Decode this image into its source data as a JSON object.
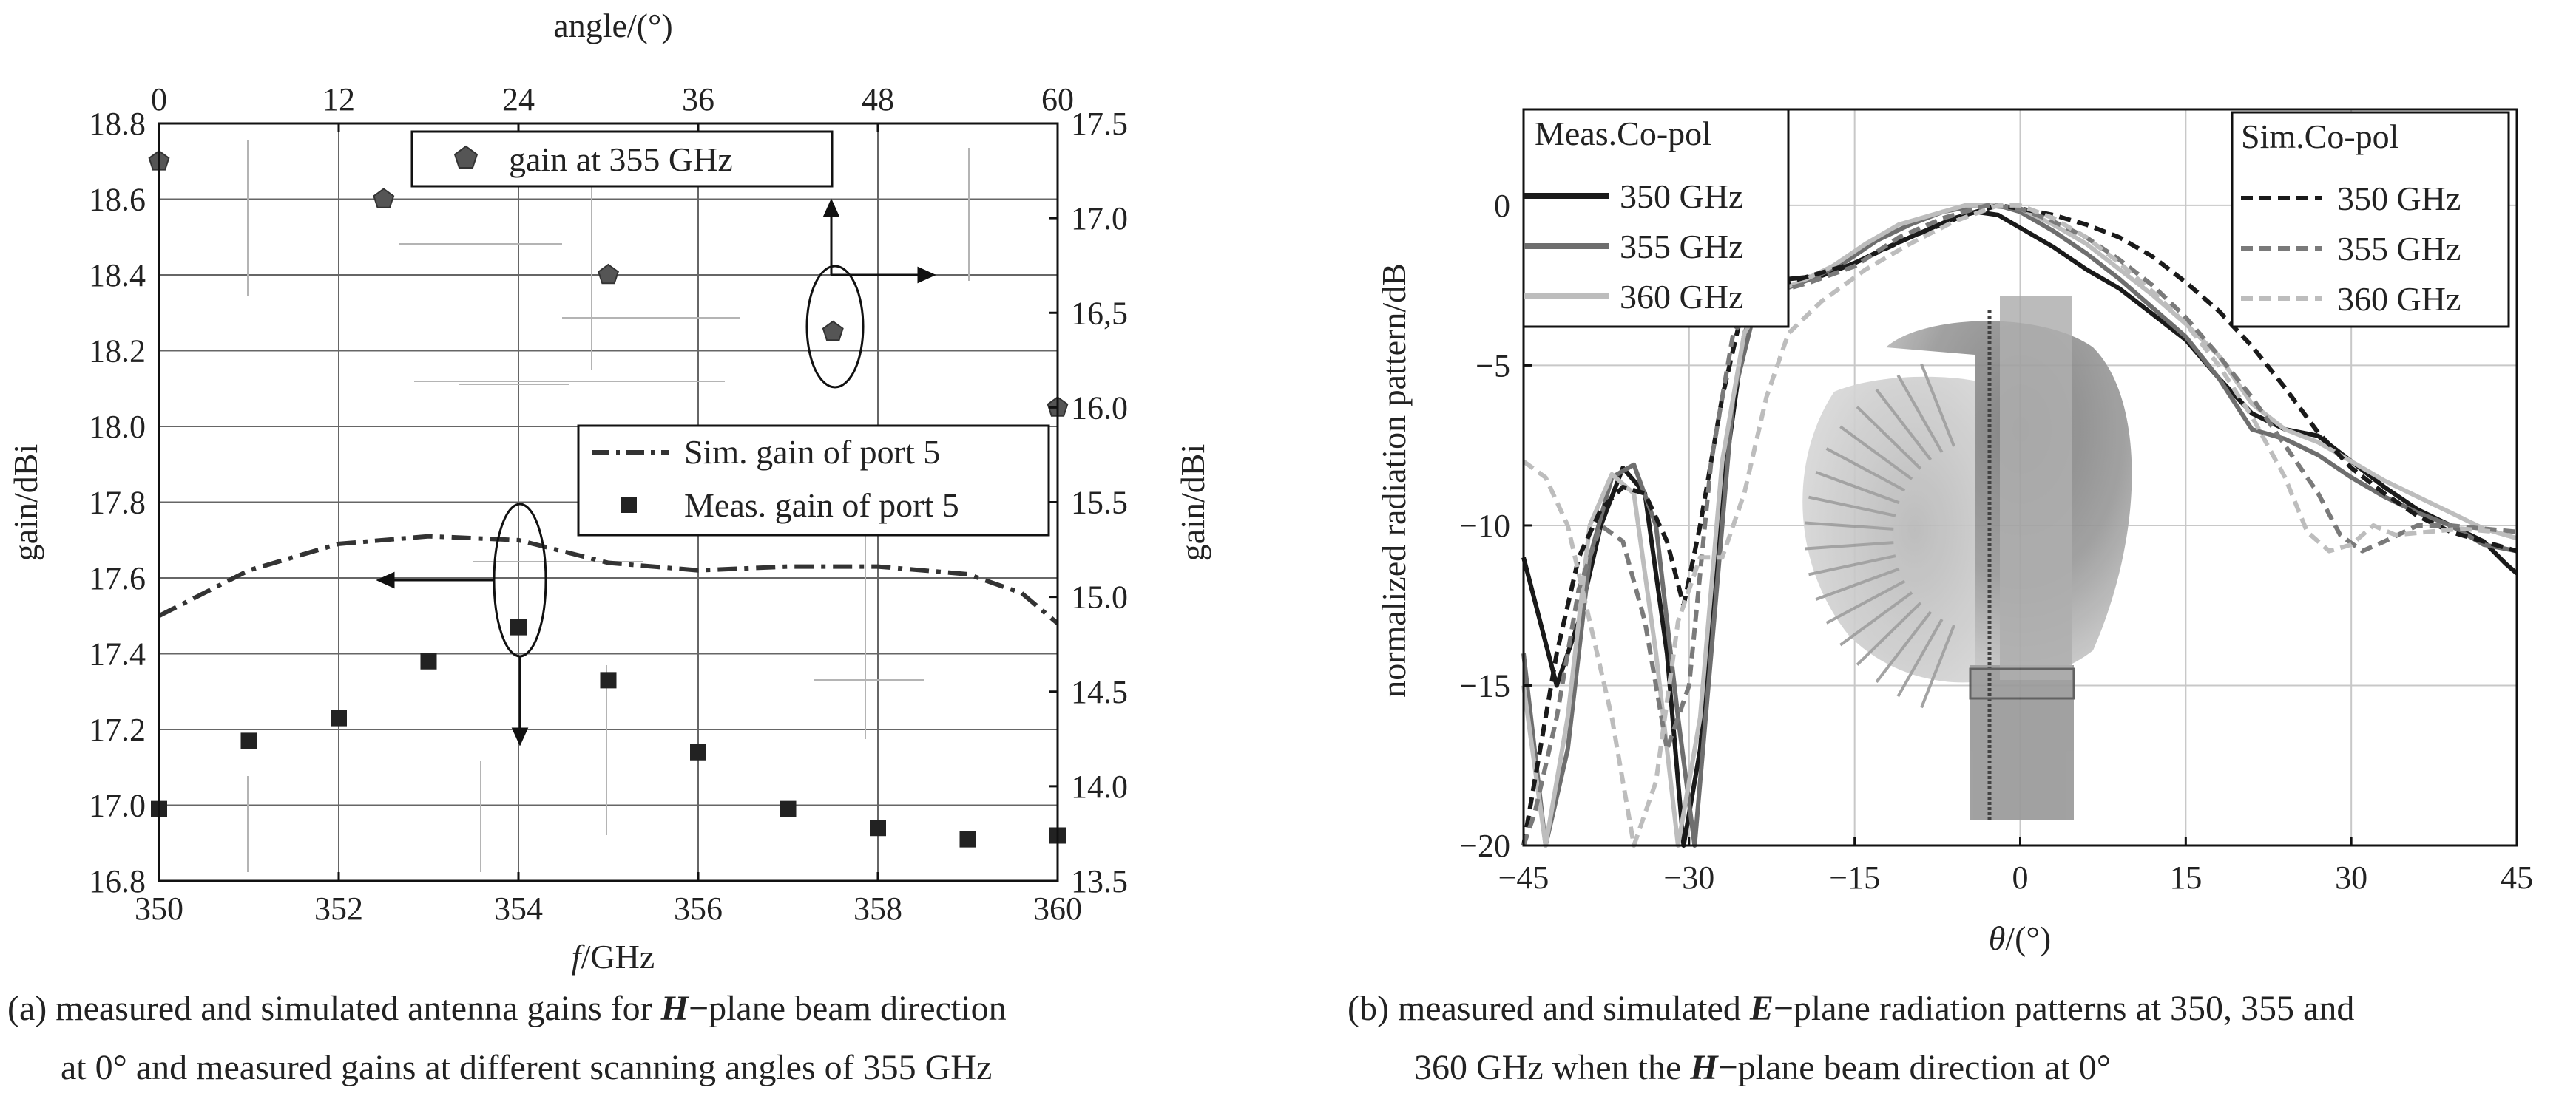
{
  "chart_data": [
    {
      "id": "a",
      "type": "scatter",
      "caption_line1": "(a) measured and simulated antenna gains for H−plane beam direction",
      "caption_line2": "at 0° and measured gains at different scanning angles of 355 GHz",
      "xlabel": "f/GHz",
      "ylabel_left": "gain/dBi",
      "ylabel_right": "gain/dBi",
      "x2label": "angle/(°)",
      "xlim": [
        350,
        360
      ],
      "ylim_left": [
        16.8,
        18.8
      ],
      "ylim_right": [
        13.5,
        17.5
      ],
      "x2lim": [
        0,
        60
      ],
      "x_ticks": [
        "350",
        "352",
        "354",
        "356",
        "358",
        "360"
      ],
      "x2_ticks": [
        "0",
        "12",
        "24",
        "36",
        "48",
        "60"
      ],
      "y_left_ticks": [
        "16.8",
        "17.0",
        "17.2",
        "17.4",
        "17.6",
        "17.8",
        "18.0",
        "18.2",
        "18.4",
        "18.6",
        "18.8"
      ],
      "y_right_ticks": [
        "13.5",
        "14.0",
        "14.5",
        "15.0",
        "15.5",
        "16.0",
        "16,5",
        "17.0",
        "17.5"
      ],
      "grid": true,
      "series": [
        {
          "name": "Sim. gain of port 5",
          "style": "dash-dot",
          "axis": "left",
          "x": [
            350,
            351,
            352,
            353,
            354,
            355,
            356,
            357,
            358,
            359,
            359.6,
            360
          ],
          "y": [
            17.5,
            17.62,
            17.69,
            17.71,
            17.7,
            17.64,
            17.62,
            17.63,
            17.63,
            17.61,
            17.56,
            17.48
          ]
        },
        {
          "name": "Meas. gain of port 5",
          "style": "square",
          "axis": "left",
          "x": [
            350,
            351,
            352,
            353,
            354,
            355,
            356,
            357,
            358,
            359,
            360
          ],
          "y": [
            16.99,
            17.17,
            17.23,
            17.38,
            17.47,
            17.33,
            17.14,
            16.99,
            16.94,
            16.91,
            16.92
          ]
        },
        {
          "name": "gain at 355 GHz",
          "style": "pentagon",
          "axis": "right-top",
          "x": [
            0,
            15,
            30,
            45,
            60
          ],
          "y": [
            17.3,
            17.1,
            16.7,
            16.4,
            16.0
          ]
        }
      ],
      "colors": {
        "line": "#333333",
        "marker": "#222222",
        "pentagon": "#555555",
        "grid": "#666666"
      }
    },
    {
      "id": "b",
      "type": "line",
      "caption_line1": "(b) measured and simulated E−plane radiation patterns at 350, 355 and",
      "caption_line2": "360 GHz when the H−plane beam direction at 0°",
      "xlabel": "θ/(°)",
      "ylabel": "normalized radiation pattern/dB",
      "xlim": [
        -45,
        45
      ],
      "ylim": [
        -20,
        3
      ],
      "x_ticks": [
        "−45",
        "−30",
        "−15",
        "0",
        "15",
        "30",
        "45"
      ],
      "y_ticks": [
        "−20",
        "−15",
        "−10",
        "−5",
        "0"
      ],
      "grid": true,
      "legend_left_title": "Meas.Co-pol",
      "legend_right_title": "Sim.Co-pol",
      "series": [
        {
          "name": "350 GHz",
          "group": "meas",
          "color": "#1a1a1a",
          "style": "solid",
          "x": [
            -45,
            -43.5,
            -42,
            -40,
            -38,
            -36,
            -34,
            -32,
            -30.5,
            -29,
            -27,
            -25,
            -23,
            -21,
            -18,
            -15,
            -12,
            -10,
            -8,
            -6,
            -4,
            -2,
            0,
            3,
            6,
            9,
            12,
            15,
            18,
            21,
            24,
            27,
            30,
            33,
            36,
            39,
            42,
            44,
            45
          ],
          "y": [
            -11,
            -13,
            -15,
            -13,
            -10,
            -8.2,
            -9,
            -14,
            -20,
            -17,
            -9,
            -4,
            -2.6,
            -2.3,
            -2.2,
            -1.8,
            -1.3,
            -1,
            -0.7,
            -0.4,
            -0.2,
            -0.3,
            -0.7,
            -1.3,
            -2,
            -2.6,
            -3.4,
            -4.2,
            -5.4,
            -6.5,
            -7,
            -7.2,
            -8,
            -8.8,
            -9.5,
            -10,
            -10.5,
            -11.2,
            -11.5
          ]
        },
        {
          "name": "355 GHz",
          "group": "meas",
          "color": "#6e6e6e",
          "style": "solid",
          "x": [
            -45,
            -43,
            -41,
            -39,
            -37,
            -35,
            -33,
            -31,
            -29.5,
            -28,
            -26,
            -24,
            -22,
            -19,
            -16,
            -13,
            -10,
            -7,
            -4,
            -2,
            0,
            3,
            6,
            9,
            12,
            15,
            18,
            21,
            24,
            27,
            30,
            33,
            36,
            39,
            42,
            45
          ],
          "y": [
            -14,
            -20,
            -17,
            -11,
            -8.5,
            -8.1,
            -10,
            -16,
            -20,
            -14,
            -6,
            -3.2,
            -2.7,
            -2.3,
            -1.8,
            -1.1,
            -0.6,
            -0.2,
            0,
            0,
            -0.2,
            -0.8,
            -1.5,
            -2.3,
            -3.2,
            -4.1,
            -5.4,
            -7,
            -7.3,
            -7.8,
            -8.5,
            -9.1,
            -9.6,
            -10,
            -10.6,
            -10.8
          ]
        },
        {
          "name": "360 GHz",
          "group": "meas",
          "color": "#bdbdbd",
          "style": "solid",
          "x": [
            -45,
            -43,
            -41,
            -39,
            -37,
            -35,
            -33,
            -31,
            -29,
            -27,
            -25,
            -23,
            -20,
            -17,
            -14,
            -11,
            -8,
            -5,
            -2,
            0,
            3,
            6,
            9,
            12,
            15,
            18,
            21,
            24,
            27,
            30,
            33,
            36,
            39,
            42,
            45
          ],
          "y": [
            -15,
            -20,
            -16,
            -10,
            -8.4,
            -9,
            -14,
            -20,
            -16,
            -8,
            -4,
            -2.8,
            -2.4,
            -1.9,
            -1.2,
            -0.6,
            -0.3,
            0,
            0,
            -0.1,
            -0.6,
            -1.2,
            -2,
            -2.8,
            -3.7,
            -4.7,
            -6.2,
            -7,
            -7.4,
            -8,
            -8.6,
            -9.1,
            -9.6,
            -10.1,
            -10.4
          ]
        },
        {
          "name": "350 GHz",
          "group": "sim",
          "color": "#1a1a1a",
          "style": "dashed",
          "x": [
            -45,
            -44,
            -42,
            -40,
            -38,
            -36,
            -34,
            -32,
            -30.5,
            -29,
            -27,
            -25,
            -23,
            -20,
            -15,
            -10,
            -5,
            -2,
            0,
            3,
            6,
            9,
            12,
            15,
            18,
            21,
            24,
            27,
            30,
            33,
            36,
            39,
            42,
            45
          ],
          "y": [
            -20,
            -18,
            -14,
            -11,
            -9.5,
            -8.8,
            -9,
            -10.5,
            -12.5,
            -10,
            -6,
            -3,
            -2.6,
            -2.3,
            -1.8,
            -1,
            -0.3,
            0,
            -0.1,
            -0.3,
            -0.6,
            -1,
            -1.6,
            -2.4,
            -3.3,
            -4.4,
            -5.7,
            -7.1,
            -8.2,
            -9,
            -9.7,
            -10.2,
            -10.5,
            -10.8
          ]
        },
        {
          "name": "355 GHz",
          "group": "sim",
          "color": "#7a7a7a",
          "style": "dashed",
          "x": [
            -45,
            -44,
            -42,
            -40,
            -38,
            -36,
            -34,
            -32,
            -30,
            -28,
            -26,
            -24,
            -22,
            -19,
            -15,
            -11,
            -7,
            -3,
            0,
            3,
            6,
            9,
            12,
            15,
            18,
            21,
            24,
            27,
            29,
            31,
            33,
            36,
            39,
            42,
            45
          ],
          "y": [
            -20,
            -19,
            -16,
            -12,
            -10,
            -10.5,
            -13,
            -17,
            -15,
            -8,
            -4,
            -3,
            -2.7,
            -2.4,
            -1.9,
            -1,
            -0.4,
            0,
            -0.1,
            -0.5,
            -1,
            -1.7,
            -2.5,
            -3.5,
            -4.7,
            -6,
            -7.5,
            -9,
            -10.3,
            -10.8,
            -10.5,
            -10,
            -10,
            -10.1,
            -10.2
          ]
        },
        {
          "name": "360 GHz",
          "group": "sim",
          "color": "#bdbdbd",
          "style": "dashed",
          "x": [
            -45,
            -43,
            -41,
            -39,
            -37,
            -35,
            -33,
            -31,
            -29,
            -27,
            -25,
            -23,
            -21,
            -18,
            -14,
            -10,
            -6,
            -2,
            0,
            3,
            6,
            9,
            12,
            15,
            18,
            21,
            24,
            26,
            28,
            30,
            32,
            34,
            37,
            40,
            43,
            45
          ],
          "y": [
            -8,
            -8.5,
            -10,
            -13,
            -16,
            -20,
            -18,
            -13,
            -11,
            -11,
            -9,
            -6,
            -4,
            -3,
            -2,
            -1.2,
            -0.5,
            0,
            0,
            -0.4,
            -1,
            -1.8,
            -2.7,
            -3.7,
            -5,
            -6.6,
            -8.5,
            -10.2,
            -10.8,
            -10.6,
            -10,
            -10.3,
            -10.2,
            -10.1,
            -10.2,
            -10.4
          ]
        }
      ]
    }
  ]
}
